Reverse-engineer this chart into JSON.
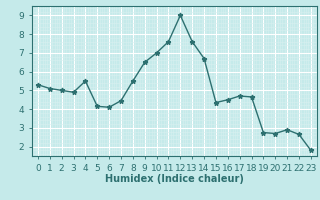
{
  "x": [
    0,
    1,
    2,
    3,
    4,
    5,
    6,
    7,
    8,
    9,
    10,
    11,
    12,
    13,
    14,
    15,
    16,
    17,
    18,
    19,
    20,
    21,
    22,
    23
  ],
  "y": [
    5.3,
    5.1,
    5.0,
    4.9,
    5.5,
    4.15,
    4.1,
    4.45,
    5.5,
    6.5,
    7.0,
    7.6,
    9.0,
    7.6,
    6.7,
    4.35,
    4.5,
    4.7,
    4.65,
    2.75,
    2.7,
    2.9,
    2.65,
    1.8
  ],
  "line_color": "#2d7070",
  "marker": "*",
  "marker_size": 3.5,
  "bg_color": "#c5eaea",
  "grid_major_color": "#ffffff",
  "grid_minor_color": "#d8f0f0",
  "xlabel": "Humidex (Indice chaleur)",
  "xlim": [
    -0.5,
    23.5
  ],
  "ylim": [
    1.5,
    9.5
  ],
  "yticks": [
    2,
    3,
    4,
    5,
    6,
    7,
    8,
    9
  ],
  "xticks": [
    0,
    1,
    2,
    3,
    4,
    5,
    6,
    7,
    8,
    9,
    10,
    11,
    12,
    13,
    14,
    15,
    16,
    17,
    18,
    19,
    20,
    21,
    22,
    23
  ],
  "xlabel_fontsize": 7,
  "tick_fontsize": 6.5
}
